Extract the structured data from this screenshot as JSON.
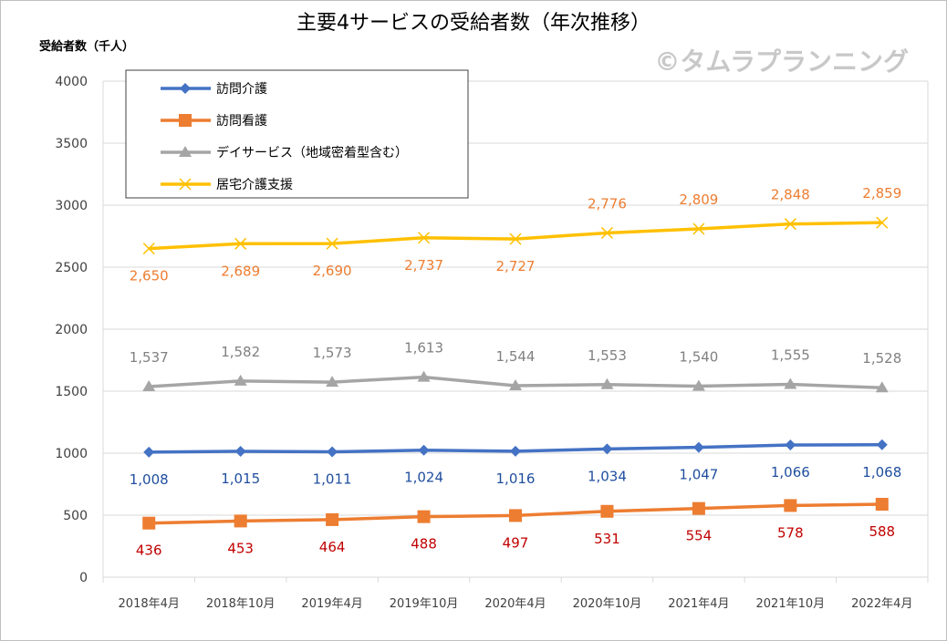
{
  "chart_data": {
    "type": "line",
    "title": "主要4サービスの受給者数（年次推移）",
    "ylabel": "受給者数（千人）",
    "xlabel": "",
    "watermark": "©タムラプランニング",
    "ylim": [
      0,
      4000
    ],
    "yticks": [
      0,
      500,
      1000,
      1500,
      2000,
      2500,
      3000,
      3500,
      4000
    ],
    "grid": true,
    "legend_position": "top-left",
    "categories": [
      "2018年4月",
      "2018年10月",
      "2019年4月",
      "2019年10月",
      "2020年4月",
      "2020年10月",
      "2021年4月",
      "2021年10月",
      "2022年4月"
    ],
    "series": [
      {
        "name": "訪問介護",
        "color": "#4472c4",
        "label_color": "#1f4e9e",
        "marker": "diamond",
        "label_position": "below",
        "values": [
          1008,
          1015,
          1011,
          1024,
          1016,
          1034,
          1047,
          1066,
          1068
        ],
        "labels": [
          "1,008",
          "1,015",
          "1,011",
          "1,024",
          "1,016",
          "1,034",
          "1,047",
          "1,066",
          "1,068"
        ]
      },
      {
        "name": "訪問看護",
        "color": "#ed7d31",
        "label_color": "#c00000",
        "marker": "square",
        "label_position": "below",
        "values": [
          436,
          453,
          464,
          488,
          497,
          531,
          554,
          578,
          588
        ],
        "labels": [
          "436",
          "453",
          "464",
          "488",
          "497",
          "531",
          "554",
          "578",
          "588"
        ]
      },
      {
        "name": "デイサービス（地域密着型含む）",
        "color": "#a5a5a5",
        "label_color": "#808080",
        "marker": "triangle",
        "label_position": "above",
        "values": [
          1537,
          1582,
          1573,
          1613,
          1544,
          1553,
          1540,
          1555,
          1528
        ],
        "labels": [
          "1,537",
          "1,582",
          "1,573",
          "1,613",
          "1,544",
          "1,553",
          "1,540",
          "1,555",
          "1,528"
        ]
      },
      {
        "name": "居宅介護支援",
        "color": "#ffc000",
        "label_color": "#ed7d31",
        "marker": "x",
        "label_position": "mixed",
        "values": [
          2650,
          2689,
          2690,
          2737,
          2727,
          2776,
          2809,
          2848,
          2859
        ],
        "labels": [
          "2,650",
          "2,689",
          "2,690",
          "2,737",
          "2,727",
          "2,776",
          "2,809",
          "2,848",
          "2,859"
        ]
      }
    ]
  }
}
